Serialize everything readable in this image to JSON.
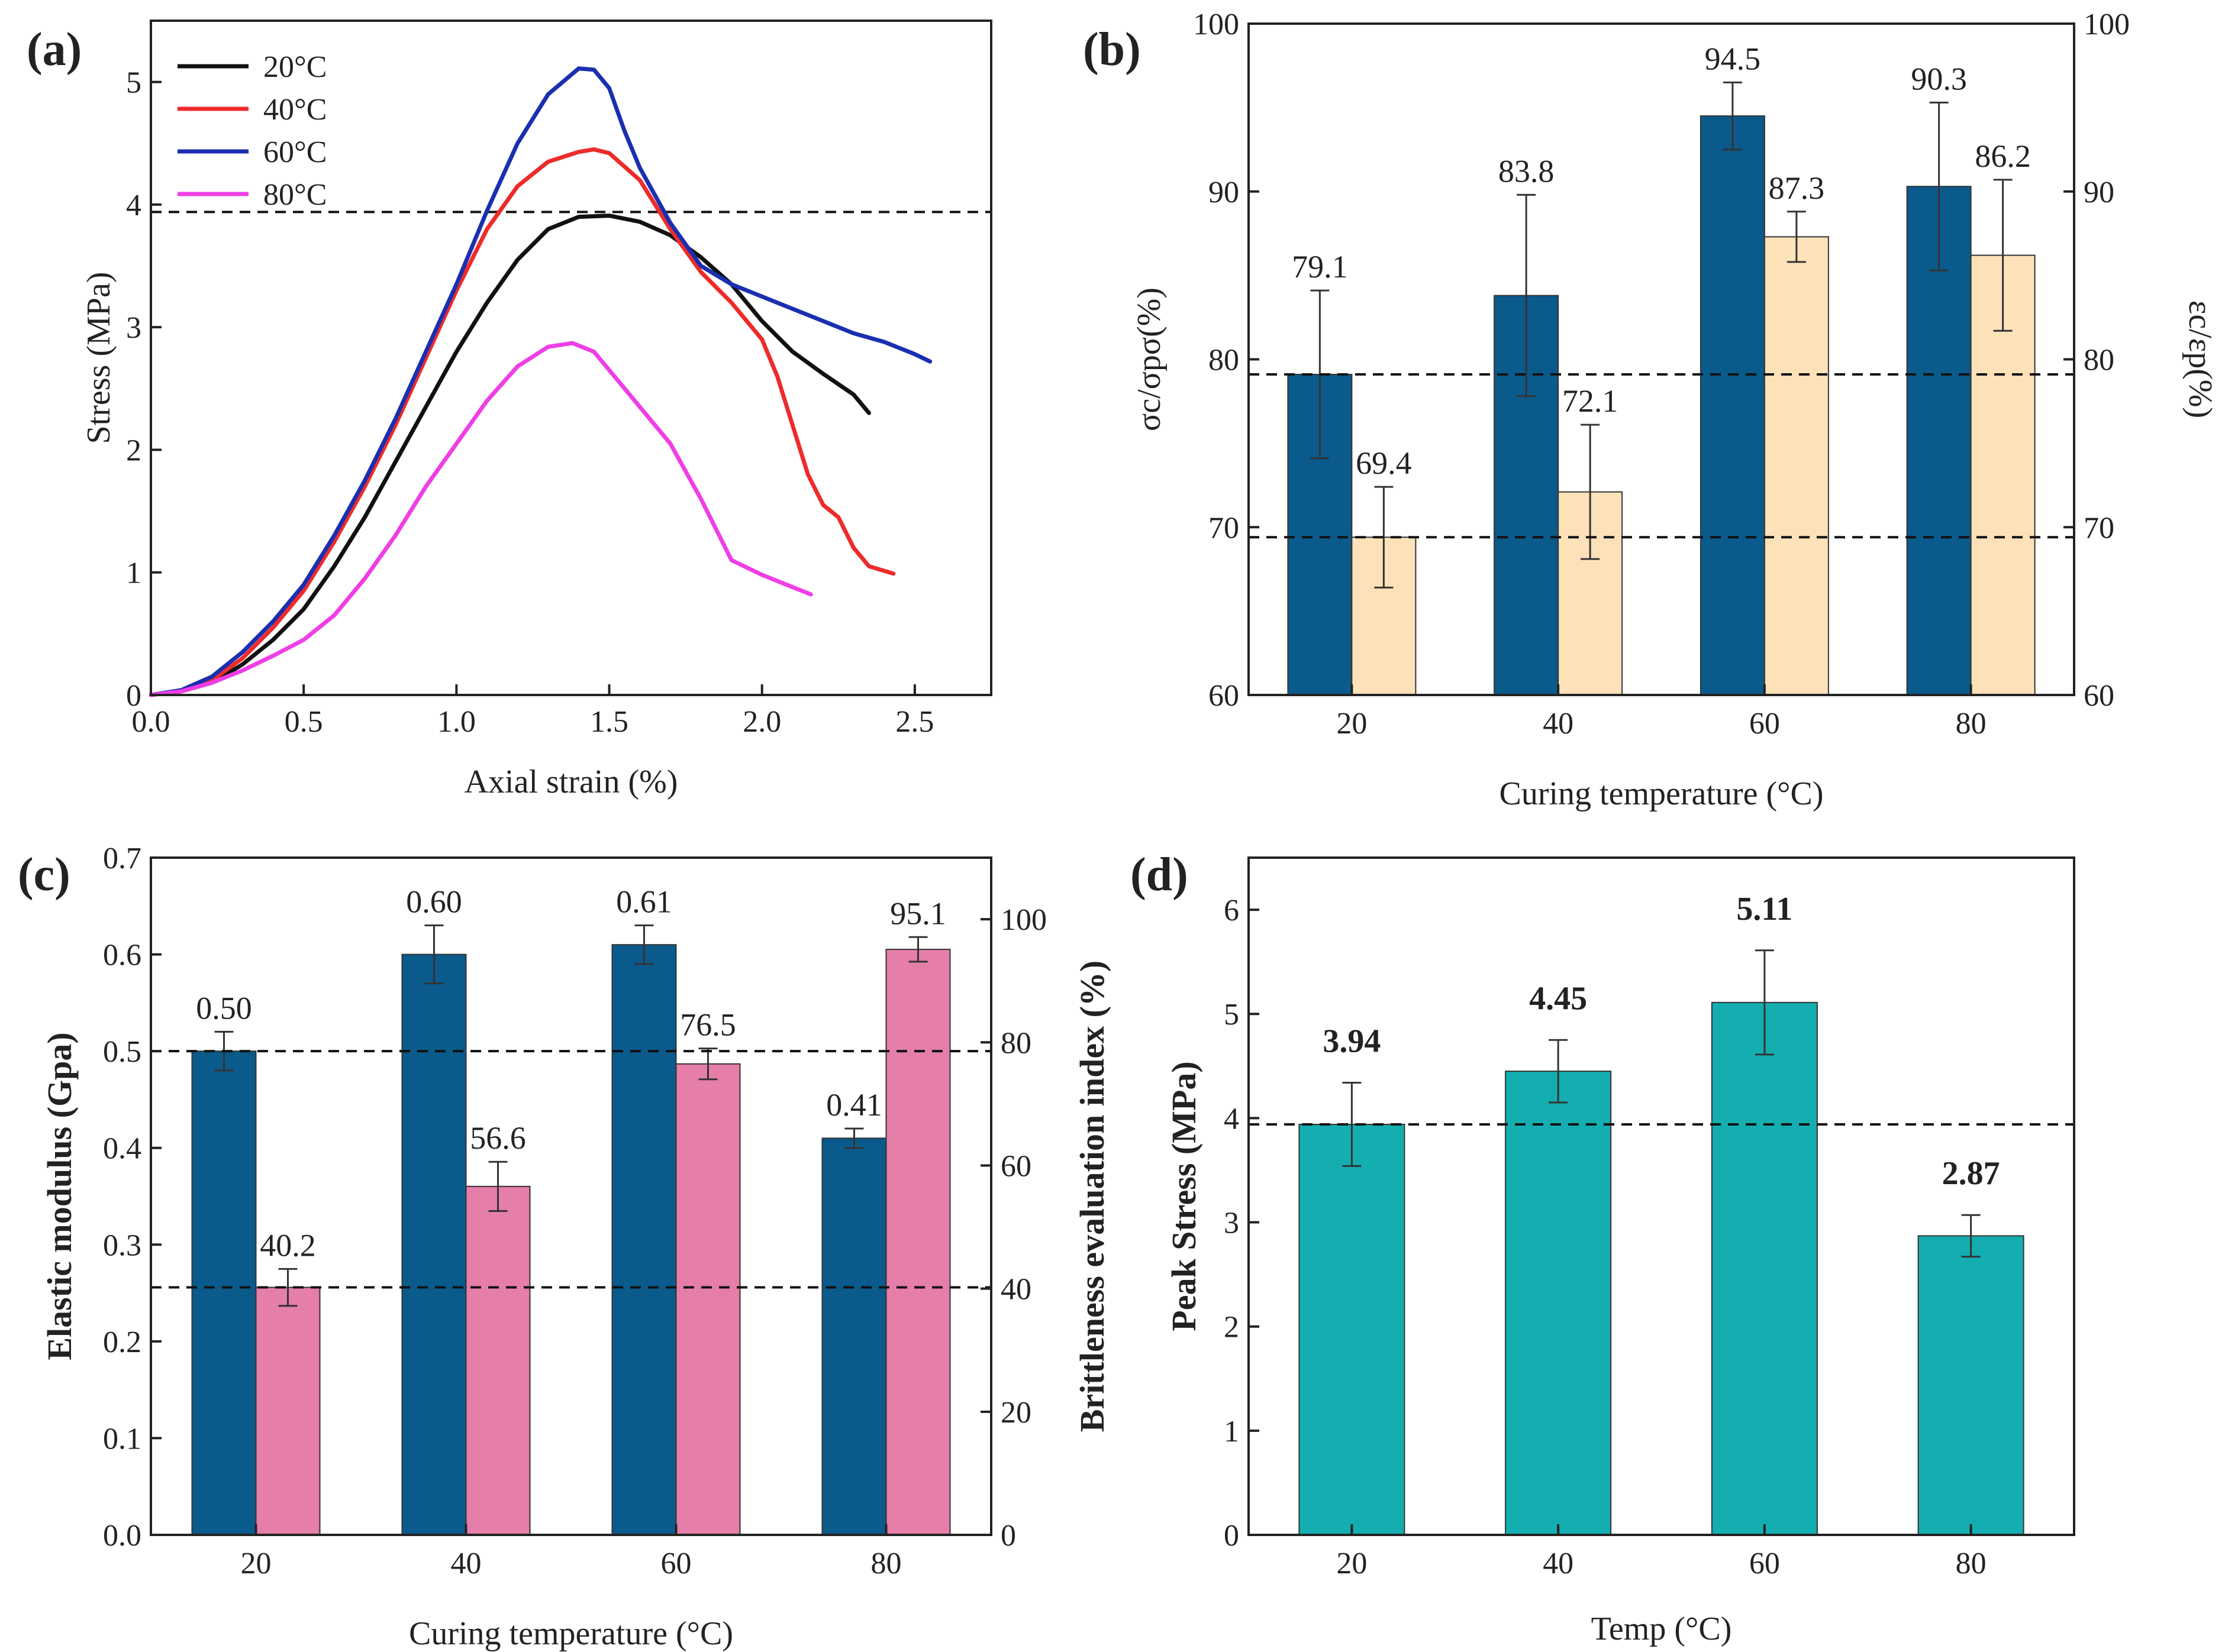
{
  "colors": {
    "navy": "#0a5a8c",
    "peach": "#fde1b9",
    "pink": "#e57ea9",
    "teal": "#14aeb1",
    "axis": "#222222",
    "curve_20": "#111111",
    "curve_40": "#ee2b2b",
    "curve_60": "#1a2fb0",
    "curve_80": "#ef3ee6"
  },
  "chart_data": [
    {
      "id": "a",
      "panel_label": "(a)",
      "type": "line",
      "xlabel": "Axial strain (%)",
      "ylabel": "Stress (MPa)",
      "xlim": [
        0,
        2.75
      ],
      "ylim": [
        0,
        5.5
      ],
      "xticks": [
        "0.0",
        "0.5",
        "1.0",
        "1.5",
        "2.0",
        "2.5"
      ],
      "yticks": [
        "0",
        "1",
        "2",
        "3",
        "4",
        "5"
      ],
      "hlines": [
        3.94
      ],
      "series": [
        {
          "name": "20°C",
          "color": "#111111",
          "x": [
            0,
            0.1,
            0.2,
            0.3,
            0.4,
            0.5,
            0.6,
            0.7,
            0.8,
            0.9,
            1.0,
            1.1,
            1.2,
            1.3,
            1.4,
            1.5,
            1.6,
            1.7,
            1.8,
            1.9,
            2.0,
            2.1,
            2.2,
            2.3,
            2.35
          ],
          "y": [
            0,
            0.03,
            0.1,
            0.25,
            0.45,
            0.7,
            1.05,
            1.45,
            1.9,
            2.35,
            2.8,
            3.2,
            3.55,
            3.8,
            3.9,
            3.91,
            3.86,
            3.75,
            3.57,
            3.35,
            3.05,
            2.8,
            2.62,
            2.45,
            2.3
          ]
        },
        {
          "name": "40°C",
          "color": "#ee2b2b",
          "x": [
            0,
            0.1,
            0.2,
            0.3,
            0.4,
            0.5,
            0.6,
            0.7,
            0.8,
            0.9,
            1.0,
            1.1,
            1.2,
            1.3,
            1.4,
            1.45,
            1.5,
            1.6,
            1.7,
            1.8,
            1.9,
            2.0,
            2.05,
            2.1,
            2.15,
            2.2,
            2.25,
            2.3,
            2.35,
            2.43
          ],
          "y": [
            0,
            0.03,
            0.12,
            0.3,
            0.55,
            0.85,
            1.25,
            1.7,
            2.2,
            2.75,
            3.3,
            3.8,
            4.15,
            4.35,
            4.43,
            4.45,
            4.42,
            4.2,
            3.8,
            3.45,
            3.2,
            2.9,
            2.6,
            2.2,
            1.8,
            1.55,
            1.45,
            1.2,
            1.05,
            0.99
          ]
        },
        {
          "name": "60°C",
          "color": "#1a2fb0",
          "x": [
            0,
            0.1,
            0.2,
            0.3,
            0.4,
            0.5,
            0.6,
            0.7,
            0.8,
            0.9,
            1.0,
            1.1,
            1.2,
            1.3,
            1.4,
            1.45,
            1.5,
            1.55,
            1.6,
            1.7,
            1.8,
            1.9,
            2.0,
            2.1,
            2.2,
            2.3,
            2.4,
            2.5,
            2.55
          ],
          "y": [
            0,
            0.04,
            0.15,
            0.35,
            0.6,
            0.9,
            1.3,
            1.75,
            2.25,
            2.8,
            3.35,
            3.95,
            4.5,
            4.9,
            5.11,
            5.1,
            4.95,
            4.6,
            4.3,
            3.85,
            3.5,
            3.35,
            3.25,
            3.15,
            3.05,
            2.95,
            2.88,
            2.78,
            2.72
          ]
        },
        {
          "name": "80°C",
          "color": "#ef3ee6",
          "x": [
            0,
            0.1,
            0.2,
            0.3,
            0.4,
            0.5,
            0.6,
            0.7,
            0.8,
            0.9,
            1.0,
            1.1,
            1.2,
            1.3,
            1.38,
            1.45,
            1.5,
            1.6,
            1.7,
            1.8,
            1.9,
            2.0,
            2.1,
            2.16
          ],
          "y": [
            0,
            0.03,
            0.1,
            0.2,
            0.32,
            0.45,
            0.65,
            0.95,
            1.3,
            1.7,
            2.05,
            2.4,
            2.68,
            2.84,
            2.87,
            2.8,
            2.65,
            2.35,
            2.05,
            1.6,
            1.1,
            0.98,
            0.88,
            0.82
          ]
        }
      ]
    },
    {
      "id": "b",
      "panel_label": "(b)",
      "type": "bar",
      "xlabel": "Curing temperature (°C)",
      "ylabel_left": "σc/σpσ(%)",
      "ylabel_right": "εc/εp(%)",
      "categories": [
        "20",
        "40",
        "60",
        "80"
      ],
      "ylim": [
        60,
        100
      ],
      "yticks": [
        "60",
        "70",
        "80",
        "90",
        "100"
      ],
      "hlines": [
        79.1,
        69.4
      ],
      "series": [
        {
          "name": "σc/σp",
          "color": "#0a5a8c",
          "values": [
            79.1,
            83.8,
            94.5,
            90.3
          ],
          "errors": [
            5.0,
            6.0,
            2.0,
            5.0
          ],
          "labels": [
            "79.1",
            "83.8",
            "94.5",
            "90.3"
          ]
        },
        {
          "name": "εc/εp",
          "color": "#fde1b9",
          "values": [
            69.4,
            72.1,
            87.3,
            86.2
          ],
          "errors": [
            3.0,
            4.0,
            1.5,
            4.5
          ],
          "labels": [
            "69.4",
            "72.1",
            "87.3",
            "86.2"
          ]
        }
      ]
    },
    {
      "id": "c",
      "panel_label": "(c)",
      "type": "bar",
      "xlabel": "Curing temperature (°C)",
      "ylabel_left": "Elastic modulus (Gpa)",
      "ylabel_right": "Brittleness evaluation index (%)",
      "categories": [
        "20",
        "40",
        "60",
        "80"
      ],
      "ylim_left": [
        0,
        0.7
      ],
      "ylim_right": [
        0,
        110
      ],
      "yticks_left": [
        "0.0",
        "0.1",
        "0.2",
        "0.3",
        "0.4",
        "0.5",
        "0.6",
        "0.7"
      ],
      "yticks_right": [
        "0",
        "20",
        "40",
        "60",
        "80",
        "100"
      ],
      "hlines_left": [
        0.5
      ],
      "hlines_right": [
        40.2
      ],
      "series": [
        {
          "name": "Elastic modulus",
          "axis": "left",
          "color": "#0a5a8c",
          "values": [
            0.5,
            0.6,
            0.61,
            0.41
          ],
          "errors": [
            0.02,
            0.03,
            0.02,
            0.01
          ],
          "labels": [
            "0.50",
            "0.60",
            "0.61",
            "0.41"
          ]
        },
        {
          "name": "Brittleness evaluation index",
          "axis": "right",
          "color": "#e57ea9",
          "values": [
            40.2,
            56.6,
            76.5,
            95.1
          ],
          "errors": [
            3.0,
            4.0,
            2.5,
            2.0
          ],
          "labels": [
            "40.2",
            "56.6",
            "76.5",
            "95.1"
          ]
        }
      ]
    },
    {
      "id": "d",
      "panel_label": "(d)",
      "type": "bar",
      "xlabel": "Temp (°C)",
      "ylabel": "Peak Stress (MPa)",
      "categories": [
        "20",
        "40",
        "60",
        "80"
      ],
      "ylim": [
        0,
        6.5
      ],
      "yticks": [
        "0",
        "1",
        "2",
        "3",
        "4",
        "5",
        "6"
      ],
      "hlines": [
        3.94
      ],
      "series": [
        {
          "name": "Peak Stress",
          "color": "#14aeb1",
          "values": [
            3.94,
            4.45,
            5.11,
            2.87
          ],
          "errors": [
            0.4,
            0.3,
            0.5,
            0.2
          ],
          "labels": [
            "3.94",
            "4.45",
            "5.11",
            "2.87"
          ]
        }
      ]
    }
  ]
}
